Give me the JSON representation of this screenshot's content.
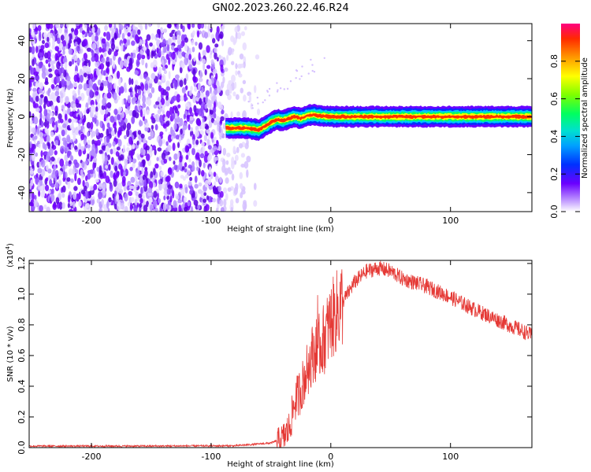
{
  "title": "GN02.2023.260.22.46.R24",
  "chart_data": [
    {
      "type": "heatmap",
      "xlabel": "Height of straight line (km)",
      "ylabel": "Frequency (Hz)",
      "xlim": [
        -252,
        168
      ],
      "ylim": [
        -50,
        49
      ],
      "xticks": [
        -200,
        -100,
        0,
        100
      ],
      "yticks": [
        -40,
        -20,
        0,
        20,
        40
      ],
      "colorbar": {
        "label": "Normalized spectral amplitude",
        "range": [
          0,
          1
        ],
        "ticks": [
          "0.0",
          "0.2",
          "0.4",
          "0.6",
          "0.8"
        ],
        "tick_values": [
          0,
          0.2,
          0.4,
          0.6,
          0.8
        ]
      },
      "signal_trace": {
        "x": [
          -88,
          -80,
          -70,
          -65,
          -60,
          -55,
          -50,
          -45,
          -40,
          -35,
          -30,
          -25,
          -20,
          -15,
          -10,
          0,
          20,
          50,
          100,
          150,
          168
        ],
        "freq": [
          -6,
          -6,
          -6,
          -6.5,
          -7,
          -5,
          -3,
          -1.5,
          -2,
          -1,
          0,
          -1,
          0.5,
          1,
          0.5,
          0,
          0,
          0,
          0,
          0,
          0
        ]
      },
      "noise_region": {
        "x_from": -252,
        "x_to": -60,
        "description_level": "low-amplitude noise"
      }
    },
    {
      "type": "line",
      "xlabel": "Height of straight line (km)",
      "ylabel": "SNR (10 * v/v)",
      "y_scale_label": "(x10",
      "y_scale_exp": "4",
      "y_scale_close": ")",
      "xlim": [
        -252,
        168
      ],
      "ylim": [
        0,
        1.22
      ],
      "xticks": [
        -200,
        -100,
        0,
        100
      ],
      "yticks": [
        "0.0",
        "0.2",
        "0.4",
        "0.6",
        "0.8",
        "1.0",
        "1.2"
      ],
      "ytick_values": [
        0,
        0.2,
        0.4,
        0.6,
        0.8,
        1.0,
        1.2
      ],
      "series": [
        {
          "color": "#e53935",
          "x": [
            -252,
            -150,
            -80,
            -50,
            -40,
            -35,
            -30,
            -25,
            -20,
            -15,
            -10,
            -5,
            0,
            10,
            20,
            30,
            40,
            50,
            60,
            80,
            100,
            120,
            140,
            160,
            168
          ],
          "y": [
            0.01,
            0.01,
            0.012,
            0.03,
            0.06,
            0.12,
            0.3,
            0.38,
            0.5,
            0.62,
            0.65,
            0.72,
            0.82,
            0.95,
            1.08,
            1.15,
            1.17,
            1.15,
            1.1,
            1.05,
            0.98,
            0.9,
            0.83,
            0.76,
            0.73
          ]
        }
      ]
    }
  ]
}
